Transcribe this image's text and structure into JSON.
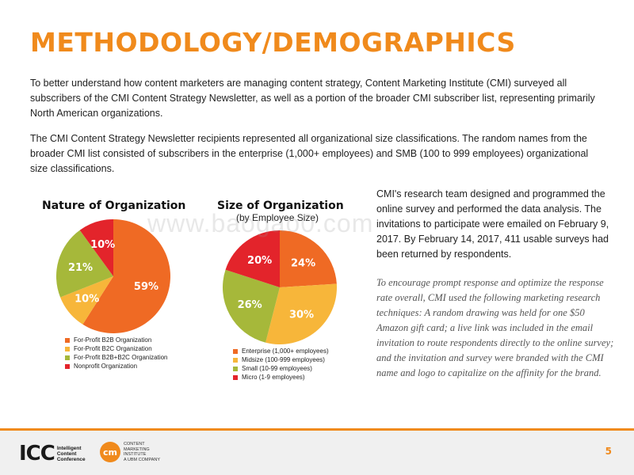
{
  "title": "METHODOLOGY/DEMOGRAPHICS",
  "paragraphs": {
    "p1": "To better understand how content marketers are managing content strategy, Content Marketing Institute (CMI) surveyed all subscribers of the CMI Content Strategy Newsletter, as well as a portion of the broader CMI subscriber list, representing primarily North American organizations.",
    "p2": "The CMI Content Strategy Newsletter recipients represented all organizational size classifications. The random names from the broader CMI list consisted of subscribers in the enterprise (1,000+ employees) and SMB (100 to 999 employees) organizational size classifications."
  },
  "right_column": {
    "main": "CMI's research team designed and programmed the online survey and performed the data analysis. The invitations to participate were emailed on February 9, 2017. By February 14, 2017, 411 usable surveys had been returned by respondents.",
    "italic": "To encourage prompt response and optimize the response rate overall, CMI used the following marketing research techniques: A random drawing was held for one $50 Amazon gift card; a live link was included in the email invitation to route respondents directly to the online survey; and the invitation and survey were branded with the CMI name and logo to capitalize on the affinity for the brand."
  },
  "watermark": "www.baogao0.com",
  "chart_data": [
    {
      "type": "pie",
      "title": "Nature of Organization",
      "categories": [
        "For-Profit B2B Organization",
        "For-Profit B2C Organization",
        "For-Profit B2B+B2C Organization",
        "Nonprofit Organization"
      ],
      "values": [
        59,
        10,
        21,
        10
      ],
      "labels": [
        "59%",
        "10%",
        "21%",
        "10%"
      ],
      "colors": [
        "#ef6a24",
        "#f7b63a",
        "#a6b83a",
        "#e3242b"
      ],
      "legend_position": "bottom"
    },
    {
      "type": "pie",
      "title": "Size of Organization",
      "subtitle": "(by Employee Size)",
      "categories": [
        "Enterprise (1,000+ employees)",
        "Midsize (100-999 employees)",
        "Small (10-99 employees)",
        "Micro (1-9 employees)"
      ],
      "values": [
        24,
        30,
        26,
        20
      ],
      "labels": [
        "24%",
        "30%",
        "26%",
        "20%"
      ],
      "colors": [
        "#ef6a24",
        "#f7b63a",
        "#a6b83a",
        "#e3242b"
      ],
      "legend_position": "bottom"
    }
  ],
  "footer": {
    "icc_mark": "ICC",
    "icc_text": [
      "Intelligent",
      "Content",
      "Conference"
    ],
    "cmi_mark": "cm",
    "cmi_text": [
      "CONTENT",
      "MARKETING",
      "INSTITUTE",
      "A UBM COMPANY"
    ],
    "page_number": "5"
  }
}
